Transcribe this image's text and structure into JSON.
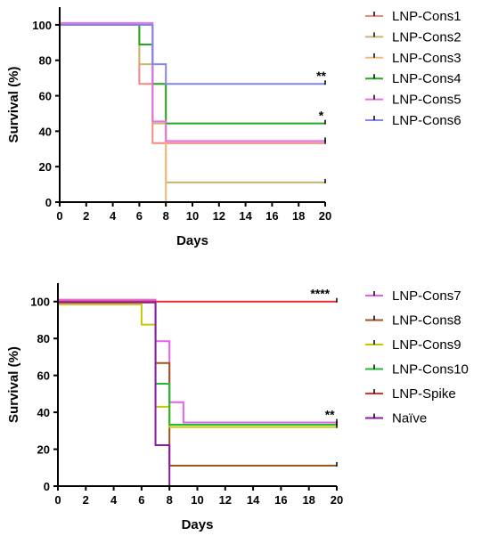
{
  "chart_data": [
    {
      "type": "line",
      "subtype": "kaplan-meier-step",
      "xlabel": "Days",
      "ylabel": "Survival (%)",
      "xlim": [
        0,
        20
      ],
      "ylim": [
        0,
        110
      ],
      "xticks": [
        0,
        2,
        4,
        6,
        8,
        10,
        12,
        14,
        16,
        18,
        20
      ],
      "yticks": [
        0,
        20,
        40,
        60,
        80,
        100
      ],
      "grid": false,
      "legend_position": "right",
      "series": [
        {
          "name": "LNP-Cons1",
          "color": "#f08a80",
          "x": [
            0,
            6,
            6.5,
            7,
            20
          ],
          "y": [
            100,
            66.7,
            66.7,
            33.3,
            33.3
          ],
          "censor": [
            20
          ]
        },
        {
          "name": "LNP-Cons2",
          "color": "#c8b46e",
          "x": [
            0,
            6,
            7,
            8,
            20
          ],
          "y": [
            100,
            77.8,
            44.4,
            11.1,
            11.1
          ],
          "censor": [
            20
          ]
        },
        {
          "name": "LNP-Cons3",
          "color": "#f7b57a",
          "x": [
            0,
            7,
            8
          ],
          "y": [
            100,
            66.7,
            0
          ],
          "censor": []
        },
        {
          "name": "LNP-Cons4",
          "color": "#22aa22",
          "x": [
            0,
            6,
            7,
            8,
            20
          ],
          "y": [
            100,
            88.9,
            66.7,
            44.4,
            44.4
          ],
          "censor": [
            20
          ]
        },
        {
          "name": "LNP-Cons5",
          "color": "#e66fe6",
          "x": [
            0,
            7,
            7.5,
            8,
            20
          ],
          "y": [
            101,
            45.5,
            45.5,
            34.5,
            34.5
          ],
          "censor": [
            20
          ]
        },
        {
          "name": "LNP-Cons6",
          "color": "#8484ee",
          "x": [
            0,
            7,
            8,
            20
          ],
          "y": [
            100,
            77.8,
            66.7,
            66.7
          ],
          "censor": [
            20
          ]
        }
      ],
      "annotations": [
        {
          "text": "**",
          "x": 19.7,
          "y": 66.7
        },
        {
          "text": "*",
          "x": 19.7,
          "y": 44.4
        }
      ]
    },
    {
      "type": "line",
      "subtype": "kaplan-meier-step",
      "xlabel": "Days",
      "ylabel": "Survival (%)",
      "xlim": [
        0,
        20
      ],
      "ylim": [
        0,
        110
      ],
      "xticks": [
        0,
        2,
        4,
        6,
        8,
        10,
        12,
        14,
        16,
        18,
        20
      ],
      "yticks": [
        0,
        20,
        40,
        60,
        80,
        100
      ],
      "grid": false,
      "legend_position": "right",
      "series": [
        {
          "name": "LNP-Cons7",
          "color": "#ea5fea",
          "x": [
            0,
            7,
            8,
            9,
            20
          ],
          "y": [
            101,
            78.5,
            45.5,
            34.5,
            34.5
          ],
          "censor": [
            20
          ]
        },
        {
          "name": "LNP-Cons8",
          "color": "#a0531a",
          "x": [
            0,
            7,
            8,
            20
          ],
          "y": [
            100,
            66.7,
            11.1,
            11.1
          ],
          "censor": [
            20
          ]
        },
        {
          "name": "LNP-Cons9",
          "color": "#c8c800",
          "x": [
            0,
            6,
            7,
            8,
            20
          ],
          "y": [
            98.5,
            87.5,
            43,
            32,
            32
          ],
          "censor": [
            20
          ]
        },
        {
          "name": "LNP-Cons10",
          "color": "#22bb33",
          "x": [
            0,
            7,
            7.5,
            8,
            20
          ],
          "y": [
            100,
            55.5,
            55.5,
            33.3,
            33.3
          ],
          "censor": [
            20
          ]
        },
        {
          "name": "LNP-Spike",
          "color": "#e53030",
          "x": [
            0,
            20
          ],
          "y": [
            100,
            100
          ],
          "censor": [
            20
          ]
        },
        {
          "name": "Naïve",
          "color": "#8a1aa8",
          "x": [
            0,
            7,
            8
          ],
          "y": [
            99.5,
            22.2,
            0
          ],
          "censor": []
        }
      ],
      "annotations": [
        {
          "text": "****",
          "x": 18.8,
          "y": 100
        },
        {
          "text": "**",
          "x": 19.5,
          "y": 34.5
        }
      ]
    }
  ]
}
